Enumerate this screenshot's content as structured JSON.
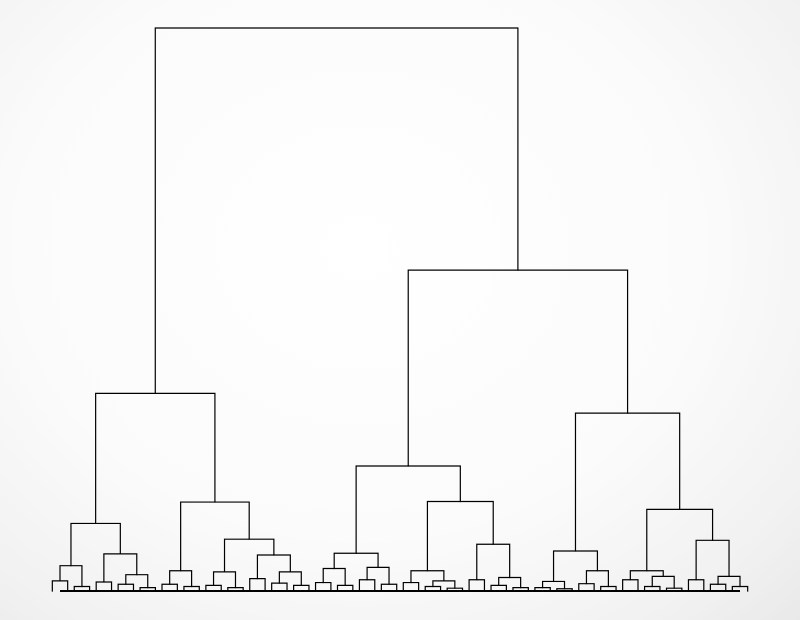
{
  "diagram": {
    "type": "dendrogram",
    "orientation": "top-down",
    "line_color": "#000000",
    "background_color": "#ffffff",
    "labels_shown": false,
    "tree": {
      "h": 1.0,
      "children": [
        {
          "h": 0.351,
          "children": [
            {
              "h": 0.12,
              "children": [
                {
                  "h": 0.045,
                  "children": [
                    {
                      "h": 0.018
                    },
                    {
                      "h": 0.008
                    }
                  ]
                },
                {
                  "h": 0.066,
                  "children": [
                    {
                      "h": 0.016
                    },
                    {
                      "h": 0.029,
                      "children": [
                        {
                          "h": 0.012
                        },
                        {
                          "h": 0.006
                        }
                      ]
                    }
                  ]
                }
              ]
            },
            {
              "h": 0.158,
              "children": [
                {
                  "h": 0.036,
                  "children": [
                    {
                      "h": 0.012
                    },
                    {
                      "h": 0.008
                    }
                  ]
                },
                {
                  "h": 0.092,
                  "children": [
                    {
                      "h": 0.034,
                      "children": [
                        {
                          "h": 0.01
                        },
                        {
                          "h": 0.006
                        }
                      ]
                    },
                    {
                      "h": 0.064,
                      "children": [
                        {
                          "h": 0.022
                        },
                        {
                          "h": 0.034,
                          "children": [
                            {
                              "h": 0.014
                            },
                            {
                              "h": 0.01
                            }
                          ]
                        }
                      ]
                    }
                  ]
                }
              ]
            }
          ]
        },
        {
          "h": 0.57,
          "children": [
            {
              "h": 0.222,
              "children": [
                {
                  "h": 0.067,
                  "children": [
                    {
                      "h": 0.04,
                      "children": [
                        {
                          "h": 0.015
                        },
                        {
                          "h": 0.01
                        }
                      ]
                    },
                    {
                      "h": 0.042,
                      "children": [
                        {
                          "h": 0.02
                        },
                        {
                          "h": 0.012
                        }
                      ]
                    }
                  ]
                },
                {
                  "h": 0.159,
                  "children": [
                    {
                      "h": 0.036,
                      "children": [
                        {
                          "h": 0.015
                        },
                        {
                          "h": 0.018,
                          "children": [
                            {
                              "h": 0.008
                            },
                            {
                              "h": 0.005
                            }
                          ]
                        }
                      ]
                    },
                    {
                      "h": 0.083,
                      "children": [
                        {
                          "h": 0.02
                        },
                        {
                          "h": 0.024,
                          "children": [
                            {
                              "h": 0.01
                            },
                            {
                              "h": 0.006
                            }
                          ]
                        }
                      ]
                    }
                  ]
                }
              ]
            },
            {
              "h": 0.316,
              "children": [
                {
                  "h": 0.071,
                  "children": [
                    {
                      "h": 0.017,
                      "children": [
                        {
                          "h": 0.006
                        },
                        {
                          "h": 0.004
                        }
                      ]
                    },
                    {
                      "h": 0.036,
                      "children": [
                        {
                          "h": 0.013
                        },
                        {
                          "h": 0.008
                        }
                      ]
                    }
                  ]
                },
                {
                  "h": 0.145,
                  "children": [
                    {
                      "h": 0.036,
                      "children": [
                        {
                          "h": 0.02
                        },
                        {
                          "h": 0.026,
                          "children": [
                            {
                              "h": 0.008
                            },
                            {
                              "h": 0.005
                            }
                          ]
                        }
                      ]
                    },
                    {
                      "h": 0.09,
                      "children": [
                        {
                          "h": 0.02
                        },
                        {
                          "h": 0.026,
                          "children": [
                            {
                              "h": 0.012
                            },
                            {
                              "h": 0.008
                            }
                          ]
                        }
                      ]
                    }
                  ]
                }
              ]
            }
          ]
        }
      ]
    }
  }
}
